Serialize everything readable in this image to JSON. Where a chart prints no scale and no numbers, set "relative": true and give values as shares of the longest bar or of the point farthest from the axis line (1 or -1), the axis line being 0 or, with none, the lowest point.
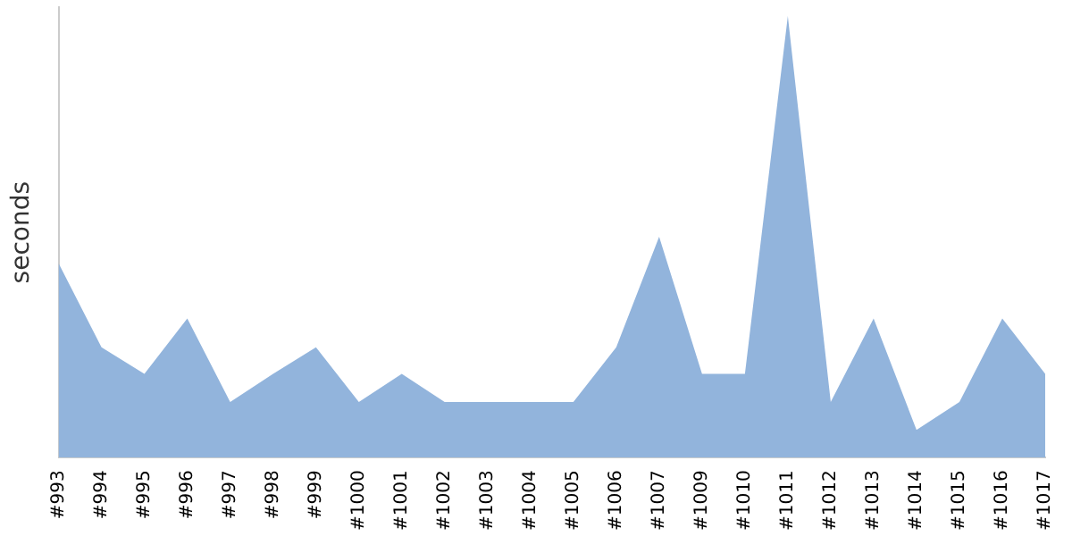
{
  "chart_data": {
    "type": "area",
    "ylabel": "seconds",
    "relative": true,
    "grid": false,
    "legend": false,
    "marker": "none",
    "categories": [
      "#993",
      "#994",
      "#995",
      "#996",
      "#997",
      "#998",
      "#999",
      "#1000",
      "#1001",
      "#1002",
      "#1003",
      "#1004",
      "#1005",
      "#1006",
      "#1007",
      "#1009",
      "#1010",
      "#1011",
      "#1012",
      "#1013",
      "#1014",
      "#1015",
      "#1016",
      "#1017"
    ],
    "series": [
      {
        "color": "#92b4dc",
        "values": [
          0.44,
          0.25,
          0.19,
          0.315,
          0.126,
          0.19,
          0.25,
          0.126,
          0.19,
          0.126,
          0.126,
          0.126,
          0.126,
          0.25,
          0.5,
          0.19,
          0.19,
          1,
          0.126,
          0.315,
          0.063,
          0.126,
          0.315,
          0.19
        ]
      }
    ]
  }
}
